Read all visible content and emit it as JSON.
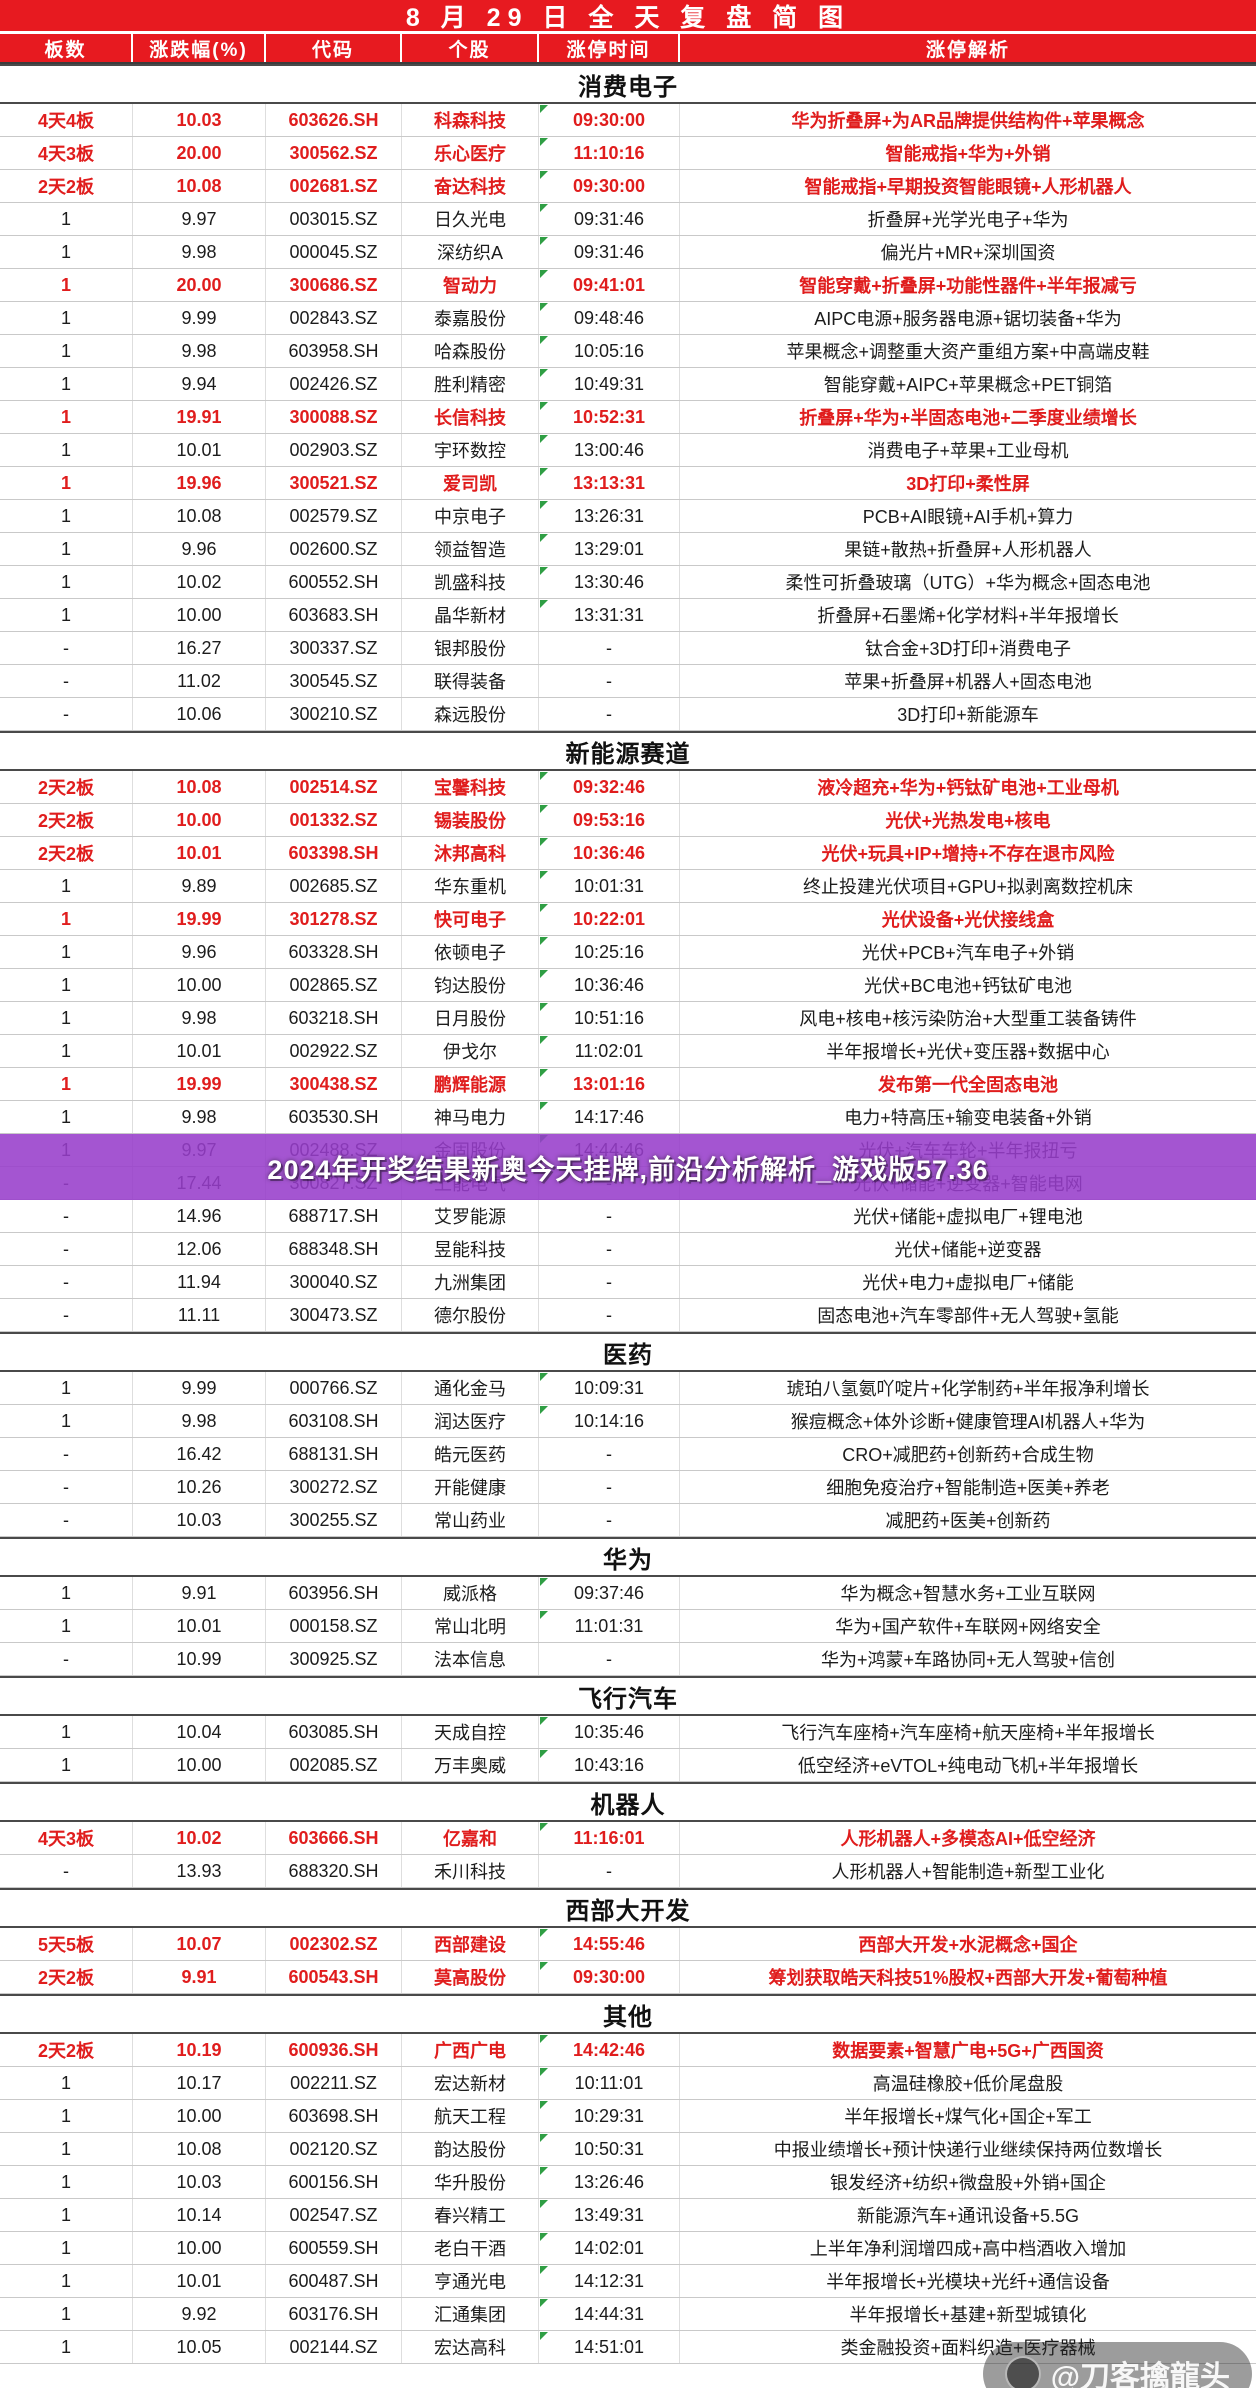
{
  "title": "8 月 29 日 全 天 复 盘 简 图",
  "columns": [
    "板数",
    "涨跌幅(%)",
    "代码",
    "个股",
    "涨停时间",
    "涨停解析"
  ],
  "colors": {
    "header_red": "#e71a20",
    "row_red_text": "#e01d1d",
    "row_black_text": "#1c1c1c",
    "banner_purple": "#973ecb",
    "note_green": "#2f9e44"
  },
  "banner": {
    "text": "2024年开奖结果新奥今天挂牌,前沿分析解析_游戏版57.36",
    "cover_rows": [
      30,
      31
    ]
  },
  "watermark": {
    "text": "@刀客擒龍头"
  },
  "sections": [
    {
      "name": "消费电子",
      "rows": [
        [
          "4天4板",
          "10.03",
          "603626.SH",
          "科森科技",
          "09:30:00",
          "华为折叠屏+为AR品牌提供结构件+苹果概念",
          1
        ],
        [
          "4天3板",
          "20.00",
          "300562.SZ",
          "乐心医疗",
          "11:10:16",
          "智能戒指+华为+外销",
          1
        ],
        [
          "2天2板",
          "10.08",
          "002681.SZ",
          "奋达科技",
          "09:30:00",
          "智能戒指+早期投资智能眼镜+人形机器人",
          1
        ],
        [
          "1",
          "9.97",
          "003015.SZ",
          "日久光电",
          "09:31:46",
          "折叠屏+光学光电子+华为",
          0
        ],
        [
          "1",
          "9.98",
          "000045.SZ",
          "深纺织A",
          "09:31:46",
          "偏光片+MR+深圳国资",
          0
        ],
        [
          "1",
          "20.00",
          "300686.SZ",
          "智动力",
          "09:41:01",
          "智能穿戴+折叠屏+功能性器件+半年报减亏",
          1
        ],
        [
          "1",
          "9.99",
          "002843.SZ",
          "泰嘉股份",
          "09:48:46",
          "AIPC电源+服务器电源+锯切装备+华为",
          0
        ],
        [
          "1",
          "9.98",
          "603958.SH",
          "哈森股份",
          "10:05:16",
          "苹果概念+调整重大资产重组方案+中高端皮鞋",
          0
        ],
        [
          "1",
          "9.94",
          "002426.SZ",
          "胜利精密",
          "10:49:31",
          "智能穿戴+AIPC+苹果概念+PET铜箔",
          0
        ],
        [
          "1",
          "19.91",
          "300088.SZ",
          "长信科技",
          "10:52:31",
          "折叠屏+华为+半固态电池+二季度业绩增长",
          1
        ],
        [
          "1",
          "10.01",
          "002903.SZ",
          "宇环数控",
          "13:00:46",
          "消费电子+苹果+工业母机",
          0
        ],
        [
          "1",
          "19.96",
          "300521.SZ",
          "爱司凯",
          "13:13:31",
          "3D打印+柔性屏",
          1
        ],
        [
          "1",
          "10.08",
          "002579.SZ",
          "中京电子",
          "13:26:31",
          "PCB+AI眼镜+AI手机+算力",
          0
        ],
        [
          "1",
          "9.96",
          "002600.SZ",
          "领益智造",
          "13:29:01",
          "果链+散热+折叠屏+人形机器人",
          0
        ],
        [
          "1",
          "10.02",
          "600552.SH",
          "凯盛科技",
          "13:30:46",
          "柔性可折叠玻璃（UTG）+华为概念+固态电池",
          0
        ],
        [
          "1",
          "10.00",
          "603683.SH",
          "晶华新材",
          "13:31:31",
          "折叠屏+石墨烯+化学材料+半年报增长",
          0
        ],
        [
          "-",
          "16.27",
          "300337.SZ",
          "银邦股份",
          "-",
          "钛合金+3D打印+消费电子",
          0
        ],
        [
          "-",
          "11.02",
          "300545.SZ",
          "联得装备",
          "-",
          "苹果+折叠屏+机器人+固态电池",
          0
        ],
        [
          "-",
          "10.06",
          "300210.SZ",
          "森远股份",
          "-",
          "3D打印+新能源车",
          0
        ]
      ]
    },
    {
      "name": "新能源赛道",
      "rows": [
        [
          "2天2板",
          "10.08",
          "002514.SZ",
          "宝馨科技",
          "09:32:46",
          "液冷超充+华为+钙钛矿电池+工业母机",
          1
        ],
        [
          "2天2板",
          "10.00",
          "001332.SZ",
          "锡装股份",
          "09:53:16",
          "光伏+光热发电+核电",
          1
        ],
        [
          "2天2板",
          "10.01",
          "603398.SH",
          "沐邦高科",
          "10:36:46",
          "光伏+玩具+IP+增持+不存在退市风险",
          1
        ],
        [
          "1",
          "9.89",
          "002685.SZ",
          "华东重机",
          "10:01:31",
          "终止投建光伏项目+GPU+拟剥离数控机床",
          0
        ],
        [
          "1",
          "19.99",
          "301278.SZ",
          "快可电子",
          "10:22:01",
          "光伏设备+光伏接线盒",
          1
        ],
        [
          "1",
          "9.96",
          "603328.SH",
          "依顿电子",
          "10:25:16",
          "光伏+PCB+汽车电子+外销",
          0
        ],
        [
          "1",
          "10.00",
          "002865.SZ",
          "钧达股份",
          "10:36:46",
          "光伏+BC电池+钙钛矿电池",
          0
        ],
        [
          "1",
          "9.98",
          "603218.SH",
          "日月股份",
          "10:51:16",
          "风电+核电+核污染防治+大型重工装备铸件",
          0
        ],
        [
          "1",
          "10.01",
          "002922.SZ",
          "伊戈尔",
          "11:02:01",
          "半年报增长+光伏+变压器+数据中心",
          0
        ],
        [
          "1",
          "19.99",
          "300438.SZ",
          "鹏辉能源",
          "13:01:16",
          "发布第一代全固态电池",
          1
        ],
        [
          "1",
          "9.98",
          "603530.SH",
          "神马电力",
          "14:17:46",
          "电力+特高压+输变电装备+外销",
          0
        ],
        [
          "1",
          "9.97",
          "002488.SZ",
          "金固股份",
          "14:44:46",
          "光伏+汽车车轮+半年报扭亏",
          0
        ],
        [
          "-",
          "17.44",
          "300827.SZ",
          "上能电气",
          "-",
          "光伏+储能+逆变器+智能电网",
          0
        ],
        [
          "-",
          "14.96",
          "688717.SH",
          "艾罗能源",
          "-",
          "光伏+储能+虚拟电厂+锂电池",
          0
        ],
        [
          "-",
          "12.06",
          "688348.SH",
          "昱能科技",
          "-",
          "光伏+储能+逆变器",
          0
        ],
        [
          "-",
          "11.94",
          "300040.SZ",
          "九洲集团",
          "-",
          "光伏+电力+虚拟电厂+储能",
          0
        ],
        [
          "-",
          "11.11",
          "300473.SZ",
          "德尔股份",
          "-",
          "固态电池+汽车零部件+无人驾驶+氢能",
          0
        ]
      ]
    },
    {
      "name": "医药",
      "rows": [
        [
          "1",
          "9.99",
          "000766.SZ",
          "通化金马",
          "10:09:31",
          "琥珀八氢氨吖啶片+化学制药+半年报净利增长",
          0
        ],
        [
          "1",
          "9.98",
          "603108.SH",
          "润达医疗",
          "10:14:16",
          "猴痘概念+体外诊断+健康管理AI机器人+华为",
          0
        ],
        [
          "-",
          "16.42",
          "688131.SH",
          "皓元医药",
          "-",
          "CRO+减肥药+创新药+合成生物",
          0
        ],
        [
          "-",
          "10.26",
          "300272.SZ",
          "开能健康",
          "-",
          "细胞免疫治疗+智能制造+医美+养老",
          0
        ],
        [
          "-",
          "10.03",
          "300255.SZ",
          "常山药业",
          "-",
          "减肥药+医美+创新药",
          0
        ]
      ]
    },
    {
      "name": "华为",
      "rows": [
        [
          "1",
          "9.91",
          "603956.SH",
          "威派格",
          "09:37:46",
          "华为概念+智慧水务+工业互联网",
          0
        ],
        [
          "1",
          "10.01",
          "000158.SZ",
          "常山北明",
          "11:01:31",
          "华为+国产软件+车联网+网络安全",
          0
        ],
        [
          "-",
          "10.99",
          "300925.SZ",
          "法本信息",
          "-",
          "华为+鸿蒙+车路协同+无人驾驶+信创",
          0
        ]
      ]
    },
    {
      "name": "飞行汽车",
      "rows": [
        [
          "1",
          "10.04",
          "603085.SH",
          "天成自控",
          "10:35:46",
          "飞行汽车座椅+汽车座椅+航天座椅+半年报增长",
          0
        ],
        [
          "1",
          "10.00",
          "002085.SZ",
          "万丰奥威",
          "10:43:16",
          "低空经济+eVTOL+纯电动飞机+半年报增长",
          0
        ]
      ]
    },
    {
      "name": "机器人",
      "rows": [
        [
          "4天3板",
          "10.02",
          "603666.SH",
          "亿嘉和",
          "11:16:01",
          "人形机器人+多模态AI+低空经济",
          1
        ],
        [
          "-",
          "13.93",
          "688320.SH",
          "禾川科技",
          "-",
          "人形机器人+智能制造+新型工业化",
          0
        ]
      ]
    },
    {
      "name": "西部大开发",
      "rows": [
        [
          "5天5板",
          "10.07",
          "002302.SZ",
          "西部建设",
          "14:55:46",
          "西部大开发+水泥概念+国企",
          1
        ],
        [
          "2天2板",
          "9.91",
          "600543.SH",
          "莫高股份",
          "09:30:00",
          "筹划获取皓天科技51%股权+西部大开发+葡萄种植",
          1
        ]
      ]
    },
    {
      "name": "其他",
      "rows": [
        [
          "2天2板",
          "10.19",
          "600936.SH",
          "广西广电",
          "14:42:46",
          "数据要素+智慧广电+5G+广西国资",
          1
        ],
        [
          "1",
          "10.17",
          "002211.SZ",
          "宏达新材",
          "10:11:01",
          "高温硅橡胶+低价尾盘股",
          0
        ],
        [
          "1",
          "10.00",
          "603698.SH",
          "航天工程",
          "10:29:31",
          "半年报增长+煤气化+国企+军工",
          0
        ],
        [
          "1",
          "10.08",
          "002120.SZ",
          "韵达股份",
          "10:50:31",
          "中报业绩增长+预计快递行业继续保持两位数增长",
          0
        ],
        [
          "1",
          "10.03",
          "600156.SH",
          "华升股份",
          "13:26:46",
          "银发经济+纺织+微盘股+外销+国企",
          0
        ],
        [
          "1",
          "10.14",
          "002547.SZ",
          "春兴精工",
          "13:49:31",
          "新能源汽车+通讯设备+5.5G",
          0
        ],
        [
          "1",
          "10.00",
          "600559.SH",
          "老白干酒",
          "14:02:01",
          "上半年净利润增四成+高中档酒收入增加",
          0
        ],
        [
          "1",
          "10.01",
          "600487.SH",
          "亨通光电",
          "14:12:31",
          "半年报增长+光模块+光纤+通信设备",
          0
        ],
        [
          "1",
          "9.92",
          "603176.SH",
          "汇通集团",
          "14:44:31",
          "半年报增长+基建+新型城镇化",
          0
        ],
        [
          "1",
          "10.05",
          "002144.SZ",
          "宏达高科",
          "14:51:01",
          "类金融投资+面料织造+医疗器械",
          0
        ]
      ]
    }
  ]
}
